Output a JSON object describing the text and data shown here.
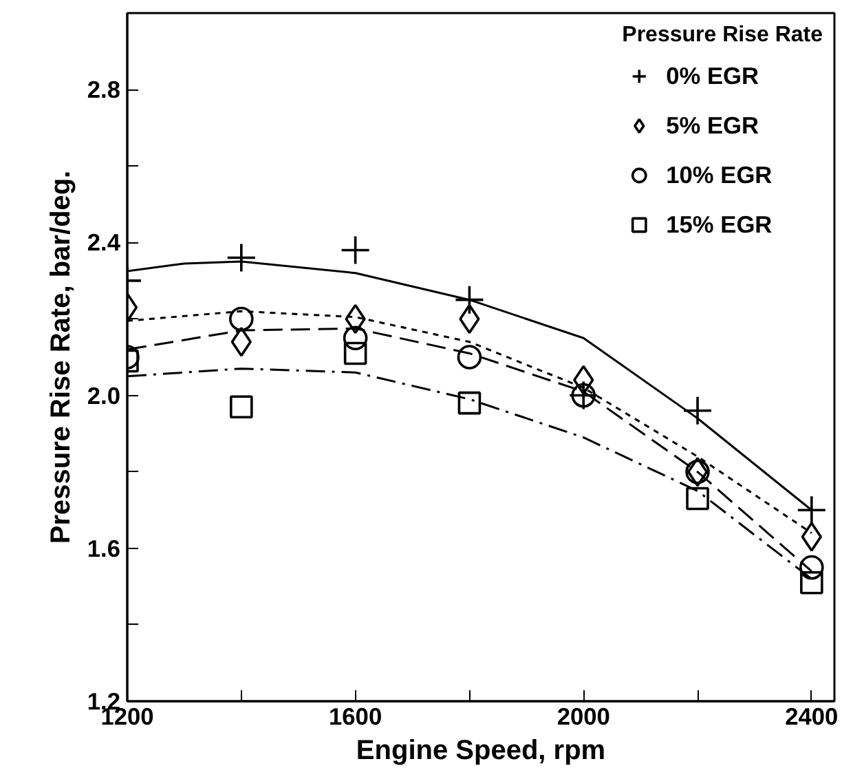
{
  "chart_data": {
    "type": "scatter",
    "xlabel": "Engine Speed, rpm",
    "ylabel": "Pressure Rise Rate, bar/deg.",
    "legend_title": "Pressure Rise Rate",
    "xlim": [
      1200,
      2440
    ],
    "ylim": [
      1.2,
      3.0
    ],
    "xticks": [
      1200,
      {
        "value": 1400,
        "label": null
      },
      1600,
      {
        "value": 1800,
        "label": null
      },
      2000,
      {
        "value": 2200,
        "label": null
      },
      2400
    ],
    "yticks": [
      1.2,
      {
        "value": 1.4,
        "label": null
      },
      1.6,
      {
        "value": 1.8,
        "label": null
      },
      {
        "value": 2.0,
        "label": "2.0"
      },
      {
        "value": 2.2,
        "label": null
      },
      2.4,
      {
        "value": 2.6,
        "label": null
      },
      2.8
    ],
    "grid": false,
    "legend": "top right",
    "x": [
      1200,
      1400,
      1600,
      1800,
      2000,
      2200,
      2400
    ],
    "series": [
      {
        "name": "0% EGR",
        "color": "#000000",
        "marker": "cross",
        "values": [
          2.3,
          2.36,
          2.38,
          2.25,
          2.0,
          1.96,
          1.7
        ]
      },
      {
        "name": "5% EGR",
        "color": "#000000",
        "marker": "diamond",
        "values": [
          2.23,
          2.14,
          2.2,
          2.2,
          2.04,
          1.8,
          1.63
        ]
      },
      {
        "name": "10% EGR",
        "color": "#000000",
        "marker": "circle",
        "values": [
          2.1,
          2.2,
          2.15,
          2.1,
          2.0,
          1.8,
          1.55
        ]
      },
      {
        "name": "15% EGR",
        "color": "#000000",
        "marker": "square",
        "values": [
          2.09,
          1.97,
          2.11,
          1.98,
          null,
          1.73,
          1.51
        ]
      },
      {
        "type": "line",
        "color": "#000000",
        "line_style": "solid",
        "x": [
          1200,
          1300,
          1400,
          1600,
          1800,
          2000,
          2200,
          2400
        ],
        "values": [
          2.325,
          2.345,
          2.35,
          2.32,
          2.25,
          2.15,
          1.94,
          1.7
        ]
      },
      {
        "type": "line",
        "color": "#000000",
        "line_style": "dotted",
        "x": [
          1200,
          1400,
          1600,
          1800,
          2000,
          2200,
          2400
        ],
        "values": [
          2.195,
          2.22,
          2.205,
          2.14,
          2.02,
          1.84,
          1.64
        ]
      },
      {
        "type": "line",
        "color": "#000000",
        "line_style": "dashed",
        "x": [
          1200,
          1400,
          1600,
          1800,
          2000,
          2200,
          2400
        ],
        "values": [
          2.12,
          2.17,
          2.175,
          2.11,
          2.01,
          1.8,
          1.54
        ]
      },
      {
        "type": "line",
        "color": "#000000",
        "line_style": "dashdot",
        "x": [
          1200,
          1400,
          1600,
          1800,
          2000,
          2200,
          2400
        ],
        "values": [
          2.05,
          2.07,
          2.06,
          1.99,
          1.89,
          1.75,
          1.52
        ]
      }
    ]
  }
}
